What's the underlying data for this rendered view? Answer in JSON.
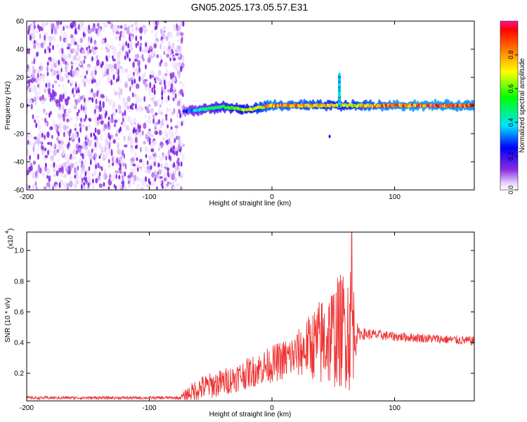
{
  "title": "GN05.2025.173.05.57.E31",
  "chart_data": [
    {
      "type": "heatmap",
      "xlabel": "Height of straight line (km)",
      "ylabel": "Frequency (Hz)",
      "xlim": [
        -200,
        165
      ],
      "ylim": [
        -60,
        60
      ],
      "xticks": [
        -200,
        -100,
        0,
        100
      ],
      "yticks": [
        -60,
        -40,
        -20,
        0,
        20,
        40,
        60
      ],
      "colorbar": {
        "label": "Normalized spectral amplitude",
        "ticks": [
          "0.0",
          "0.2",
          "0.4",
          "0.6",
          "0.8"
        ],
        "range": [
          0,
          1
        ]
      },
      "features": {
        "noise_region_x": [
          -200,
          -72
        ],
        "ridge": [
          {
            "x": -72,
            "f": -4,
            "amp": 0.25
          },
          {
            "x": -60,
            "f": -3,
            "amp": 0.45
          },
          {
            "x": -40,
            "f": -1,
            "amp": 0.55
          },
          {
            "x": -20,
            "f": -3,
            "amp": 0.7
          },
          {
            "x": 0,
            "f": 0,
            "amp": 0.9
          },
          {
            "x": 30,
            "f": 0,
            "amp": 0.85
          },
          {
            "x": 55,
            "f": 0,
            "amp": 0.75
          },
          {
            "x": 100,
            "f": 0,
            "amp": 0.95
          },
          {
            "x": 165,
            "f": 0,
            "amp": 0.95
          }
        ],
        "spike": {
          "x": 55,
          "f_range": [
            0,
            22
          ]
        }
      }
    },
    {
      "type": "line",
      "xlabel": "Height of straight line (km)",
      "ylabel": "SNR (10 * v/v)",
      "scale_label": "(x10",
      "scale_exp": "4",
      "xlim": [
        -200,
        165
      ],
      "ylim": [
        0.02,
        1.12
      ],
      "xticks": [
        -200,
        -100,
        0,
        100
      ],
      "yticks": [
        0.2,
        0.4,
        0.6,
        0.8,
        1.0
      ],
      "ytick_labels": [
        "0.2",
        "0.4",
        "0.6",
        "0.8",
        "1.0"
      ],
      "color": "#ee3333",
      "envelope": [
        {
          "x": -200,
          "base": 0.04,
          "amp": 0.01
        },
        {
          "x": -75,
          "base": 0.04,
          "amp": 0.01
        },
        {
          "x": -70,
          "base": 0.06,
          "amp": 0.04
        },
        {
          "x": -60,
          "base": 0.1,
          "amp": 0.08
        },
        {
          "x": -40,
          "base": 0.14,
          "amp": 0.09
        },
        {
          "x": -20,
          "base": 0.2,
          "amp": 0.1
        },
        {
          "x": 0,
          "base": 0.26,
          "amp": 0.12
        },
        {
          "x": 20,
          "base": 0.32,
          "amp": 0.15
        },
        {
          "x": 30,
          "base": 0.38,
          "amp": 0.2
        },
        {
          "x": 40,
          "base": 0.4,
          "amp": 0.3
        },
        {
          "x": 50,
          "base": 0.45,
          "amp": 0.35
        },
        {
          "x": 60,
          "base": 0.5,
          "amp": 0.4
        },
        {
          "x": 65,
          "base": 0.5,
          "amp": 0.45
        },
        {
          "x": 70,
          "base": 0.46,
          "amp": 0.04
        },
        {
          "x": 100,
          "base": 0.44,
          "amp": 0.03
        },
        {
          "x": 165,
          "base": 0.41,
          "amp": 0.03
        }
      ],
      "peak": {
        "x": 65,
        "y": 1.12
      }
    }
  ]
}
